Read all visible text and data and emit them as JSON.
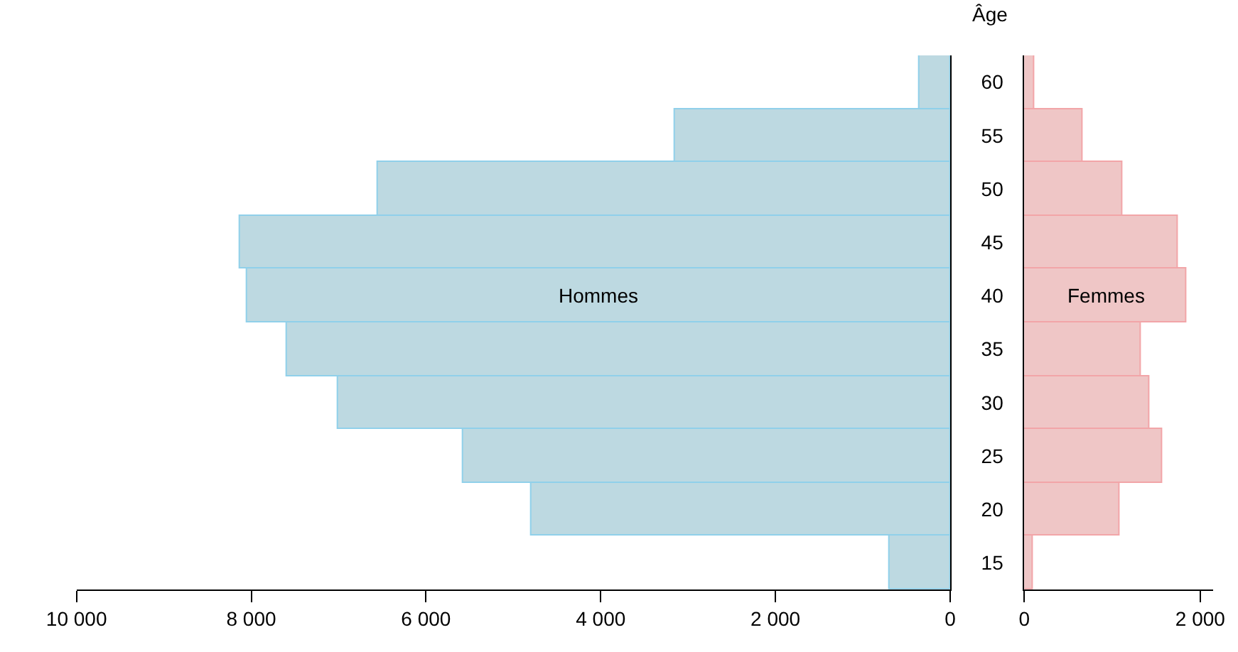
{
  "chart_data": [
    {
      "type": "bar",
      "orientation": "horizontal",
      "ylabel": "Âge",
      "categories": [
        "60",
        "55",
        "50",
        "45",
        "40",
        "35",
        "30",
        "25",
        "20",
        "15"
      ],
      "series": [
        {
          "name": "Hommes",
          "color": "#bdd9e1",
          "values": [
            350,
            3150,
            6550,
            8130,
            8050,
            7600,
            7000,
            5570,
            4800,
            700
          ]
        }
      ],
      "xlim": [
        10000,
        0
      ],
      "xticks": [
        {
          "value": 10000,
          "label": "10 000"
        },
        {
          "value": 8000,
          "label": "8 000"
        },
        {
          "value": 6000,
          "label": "6 000"
        },
        {
          "value": 4000,
          "label": "4 000"
        },
        {
          "value": 2000,
          "label": "2 000"
        },
        0
      ]
    },
    {
      "type": "bar",
      "orientation": "horizontal",
      "categories": [
        "60",
        "55",
        "50",
        "45",
        "40",
        "35",
        "30",
        "25",
        "20",
        "15"
      ],
      "series": [
        {
          "name": "Femmes",
          "color": "#efc6c6",
          "values": [
            120,
            660,
            1110,
            1750,
            1840,
            1330,
            1420,
            1560,
            1080,
            100
          ]
        }
      ],
      "xlim": [
        0,
        2150
      ],
      "xticks": [
        0,
        {
          "value": 2000,
          "label": "2 000"
        }
      ],
      "tick_labels": "x"
    }
  ]
}
